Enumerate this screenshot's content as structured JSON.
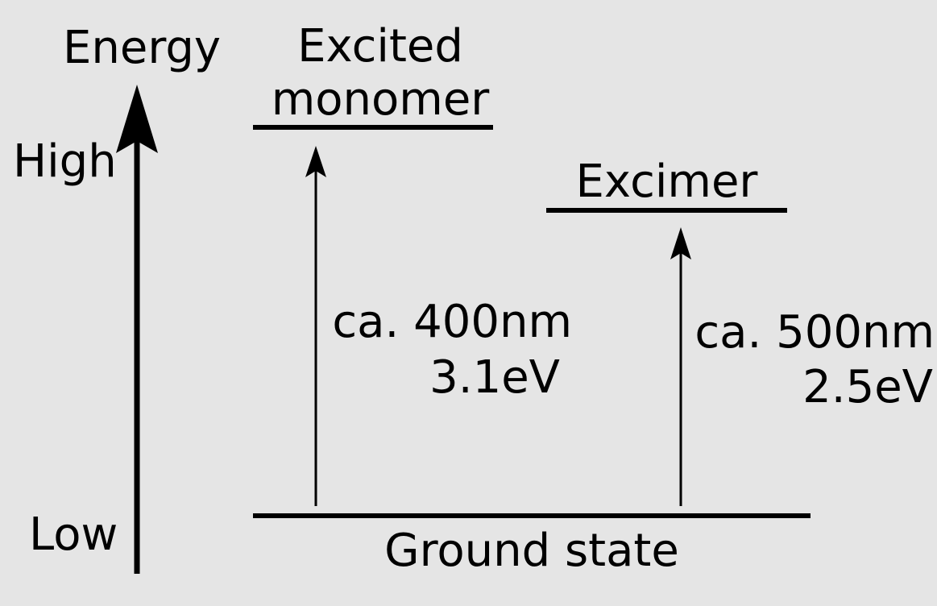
{
  "labels": {
    "energy_axis": "Energy",
    "high": "High",
    "low": "Low",
    "excited_monomer_line1": "Excited",
    "excited_monomer_line2": "monomer",
    "excimer": "Excimer",
    "ground_state": "Ground state",
    "monomer_wavelength": "ca. 400nm",
    "monomer_energy": "3.1eV",
    "excimer_wavelength": "ca. 500nm",
    "excimer_energy": "2.5eV"
  },
  "colors": {
    "background": "#e5e5e5",
    "ink": "#000000"
  }
}
